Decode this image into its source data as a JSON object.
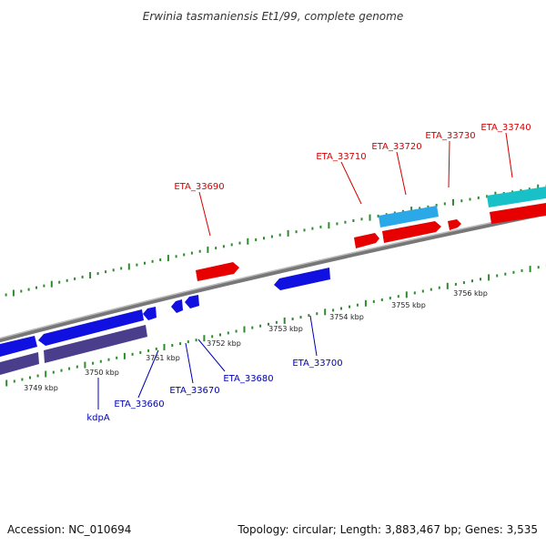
{
  "title": "Erwinia tasmaniensis Et1/99, complete genome",
  "footer": {
    "accession": "Accession: NC_010694",
    "summary": "Topology: circular; Length: 3,883,467 bp; Genes: 3,535"
  },
  "colors": {
    "forward_gene": "#e60000",
    "reverse_gene": "#1010e0",
    "forward_rna": "#2aa8e8",
    "rna_2": "#18c0c8",
    "reverse_other": "#4a3e8c",
    "backbone": "#888888",
    "tick": "#2f8a2f",
    "label_red": "#d40000",
    "label_blue": "#0000b4"
  },
  "scale_labels": [
    "3749 kbp",
    "3750 kbp",
    "3751 kbp",
    "3752 kbp",
    "3753 kbp",
    "3754 kbp",
    "3755 kbp",
    "3756 kbp"
  ],
  "gene_labels": {
    "forward": [
      "ETA_33690",
      "ETA_33710",
      "ETA_33720",
      "ETA_33730",
      "ETA_33740"
    ],
    "reverse": [
      "kdpA",
      "ETA_33660",
      "ETA_33670",
      "ETA_33680",
      "ETA_33700"
    ]
  }
}
